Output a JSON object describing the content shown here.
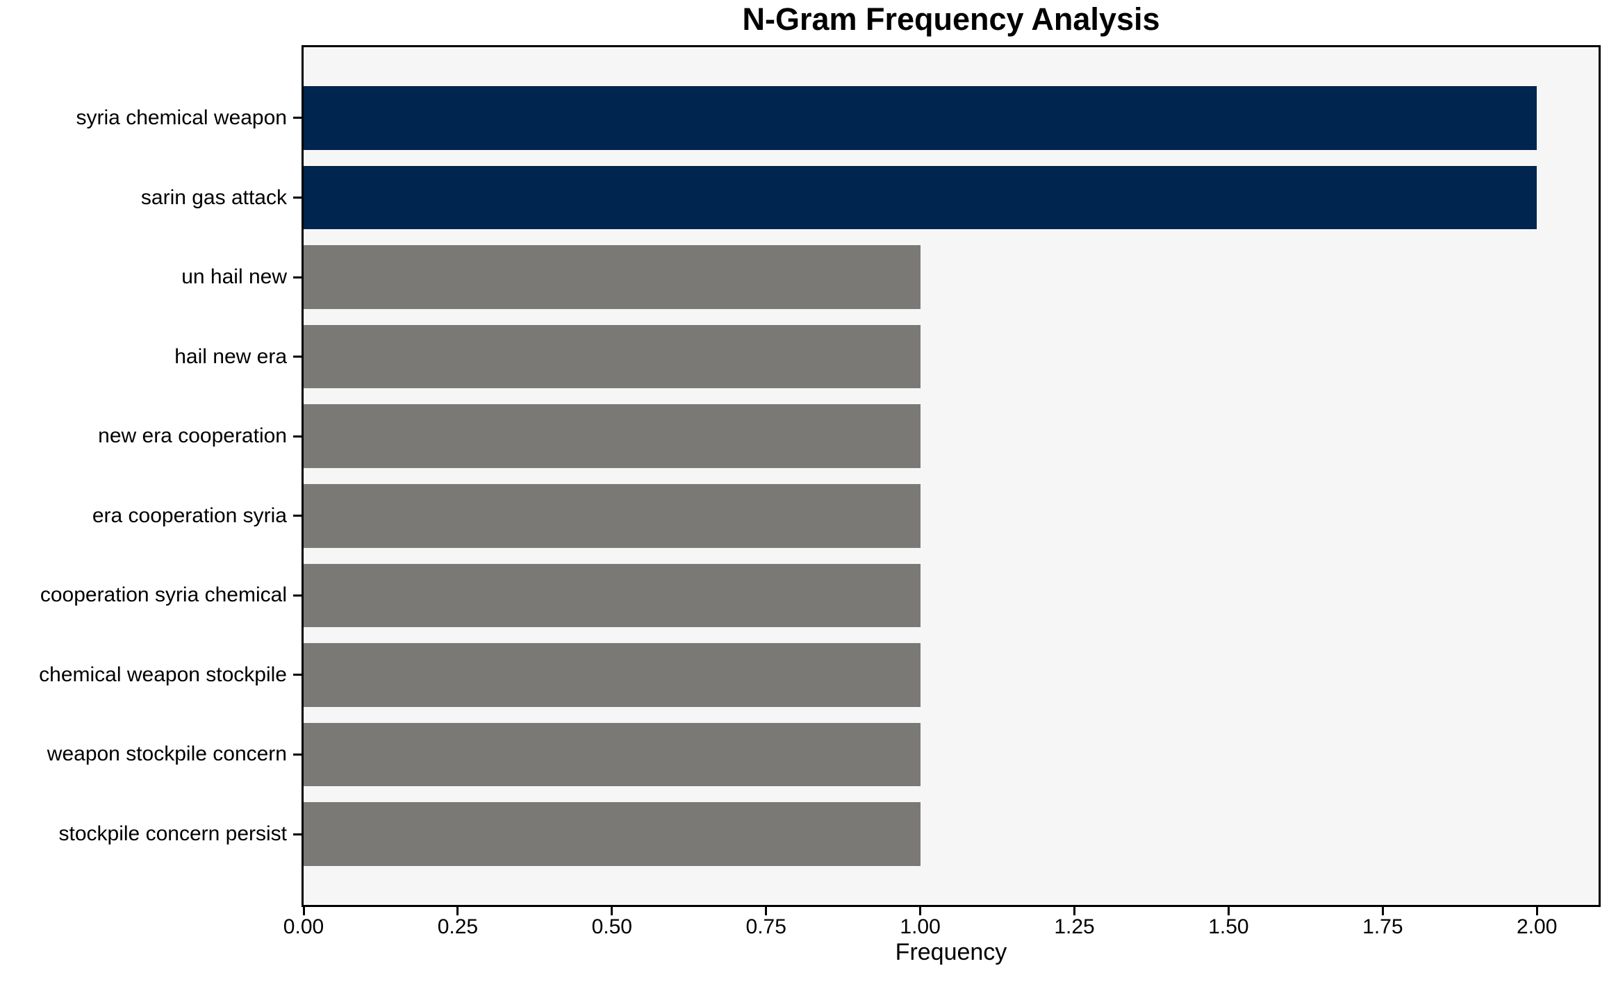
{
  "chart_data": {
    "type": "bar",
    "orientation": "horizontal",
    "title": "N-Gram Frequency Analysis",
    "xlabel": "Frequency",
    "ylabel": "",
    "categories": [
      "syria chemical weapon",
      "sarin gas attack",
      "un hail new",
      "hail new era",
      "new era cooperation",
      "era cooperation syria",
      "cooperation syria chemical",
      "chemical weapon stockpile",
      "weapon stockpile concern",
      "stockpile concern persist"
    ],
    "values": [
      2,
      2,
      1,
      1,
      1,
      1,
      1,
      1,
      1,
      1
    ],
    "bar_colors": [
      "#00254e",
      "#00254e",
      "#7a7975",
      "#7a7975",
      "#7a7975",
      "#7a7975",
      "#7a7975",
      "#7a7975",
      "#7a7975",
      "#7a7975"
    ],
    "highlight_color": "#00254e",
    "default_color": "#7a7975",
    "xlim": [
      0,
      2.1
    ],
    "ylim": [
      -0.89,
      9.89
    ],
    "bar_height_fraction": 0.8,
    "xticks": {
      "values": [
        0,
        0.25,
        0.5,
        0.75,
        1.0,
        1.25,
        1.5,
        1.75,
        2.0
      ],
      "labels": [
        "0.00",
        "0.25",
        "0.50",
        "0.75",
        "1.00",
        "1.25",
        "1.50",
        "1.75",
        "2.00"
      ]
    },
    "grid": false,
    "legend": null,
    "plot_background": "#f7f6f6",
    "figure_background": "#ffffff",
    "spine_color": "#000000"
  }
}
